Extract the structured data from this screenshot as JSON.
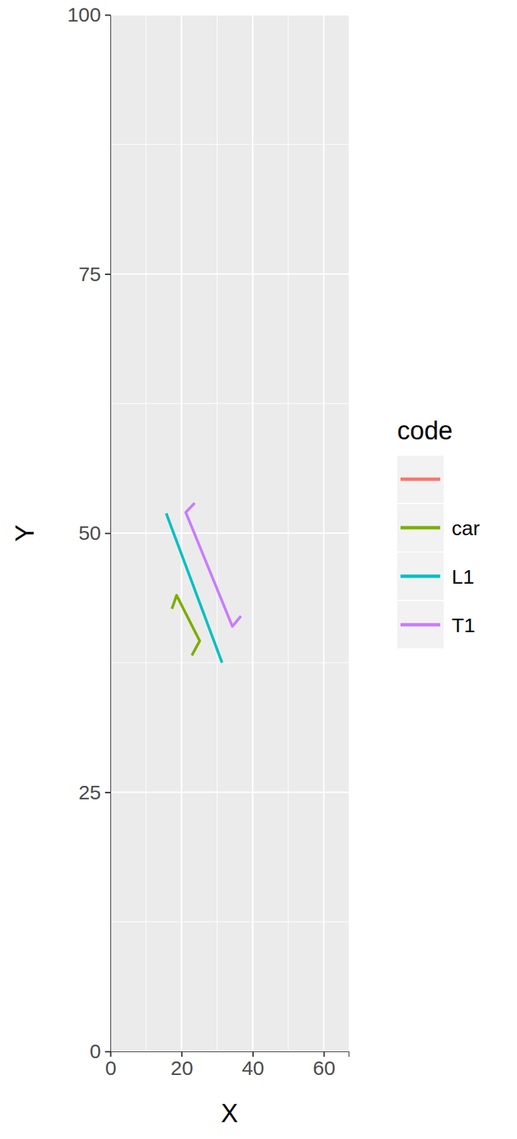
{
  "chart_data": {
    "type": "line",
    "x_label": "X",
    "y_label": "Y",
    "legend_title": "code",
    "xlim": [
      0,
      67
    ],
    "ylim": [
      0,
      100
    ],
    "xticks": [
      0,
      20,
      40,
      60
    ],
    "yticks": [
      0,
      25,
      50,
      75,
      100
    ],
    "grid": true,
    "legend": "right",
    "series": [
      {
        "name": null,
        "color": "#F8766D",
        "x": [],
        "values": []
      },
      {
        "name": "car",
        "color": "#7CAE00",
        "x": [
          17.3,
          18.6,
          25.1,
          22.9
        ],
        "values": [
          42.7,
          44.0,
          39.6,
          38.2
        ]
      },
      {
        "name": "L1",
        "color": "#00BFC4",
        "x": [
          15.7,
          31.4
        ],
        "values": [
          51.9,
          37.5
        ]
      },
      {
        "name": "T1",
        "color": "#C77CFF",
        "x": [
          23.7,
          21.2,
          34.3,
          36.7
        ],
        "values": [
          52.9,
          52.0,
          41.0,
          42.0
        ]
      }
    ]
  }
}
